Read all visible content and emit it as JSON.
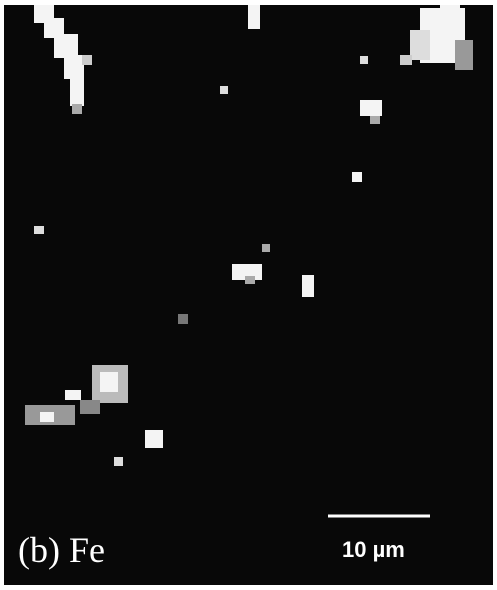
{
  "label": "(b) Fe",
  "scale_bar": {
    "label": "10 µm"
  }
}
